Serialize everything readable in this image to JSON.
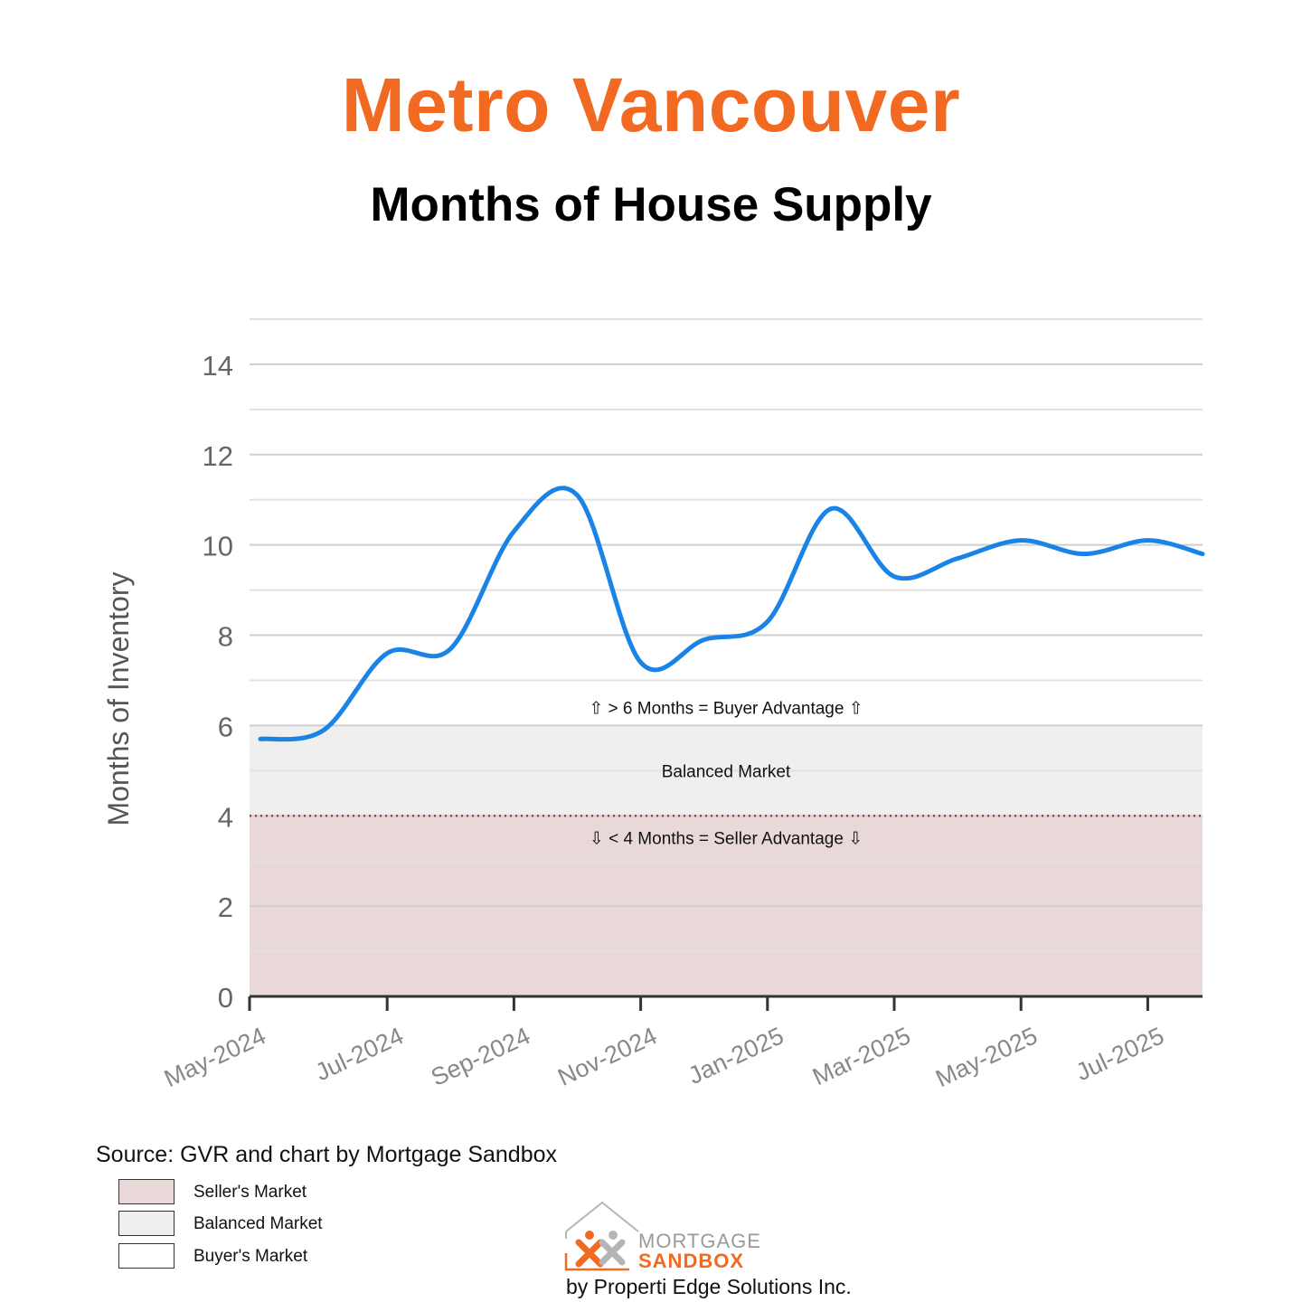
{
  "header": {
    "title": "Metro Vancouver",
    "subtitle": "Months of House Supply"
  },
  "colors": {
    "title": "#f26a21",
    "line": "#1a83e6",
    "seller_zone": "#e9d8d8",
    "balanced_zone": "#efefef",
    "buyer_zone": "#ffffff",
    "threshold_line": "#b33a3a"
  },
  "chart_data": {
    "type": "line",
    "title": "Months of House Supply",
    "xlabel": "",
    "ylabel": "Months of Inventory",
    "ylim": [
      0,
      15
    ],
    "yticks": [
      0,
      2,
      4,
      6,
      8,
      10,
      12,
      14
    ],
    "grid": true,
    "x": [
      "May-2024",
      "Jun-2024",
      "Jul-2024",
      "Aug-2024",
      "Sep-2024",
      "Oct-2024",
      "Nov-2024",
      "Dec-2024",
      "Jan-2025",
      "Feb-2025",
      "Mar-2025",
      "Apr-2025",
      "May-2025",
      "Jun-2025",
      "Jul-2025",
      "Aug-2025"
    ],
    "xtick_labels": [
      "May-2024",
      "Jul-2024",
      "Sep-2024",
      "Nov-2024",
      "Jan-2025",
      "Mar-2025",
      "May-2025",
      "Jul-2025"
    ],
    "series": [
      {
        "values": [
          5.7,
          5.9,
          7.6,
          7.7,
          10.3,
          11.1,
          7.4,
          7.9,
          8.3,
          10.8,
          9.3,
          9.7,
          10.1,
          9.8,
          10.1,
          9.8
        ]
      }
    ],
    "bands": [
      {
        "from": 0,
        "to": 4,
        "label": "Seller's Market"
      },
      {
        "from": 4,
        "to": 6,
        "label": "Balanced Market"
      },
      {
        "from": 6,
        "to": 15,
        "label": "Buyer's Market"
      }
    ],
    "annotations": {
      "buyer": "⇧ > 6 Months = Buyer Advantage ⇧",
      "balanced": "Balanced Market",
      "seller": "⇩ < 4 Months = Seller Advantage ⇩"
    }
  },
  "source": "Source: GVR and chart by Mortgage Sandbox",
  "legend": {
    "items": [
      {
        "label": "Seller's Market"
      },
      {
        "label": "Balanced Market"
      },
      {
        "label": "Buyer's Market"
      }
    ]
  },
  "logo": {
    "line1": "MORTGAGE",
    "line2": "SANDBOX",
    "byline": "by Properti Edge Solutions Inc."
  }
}
